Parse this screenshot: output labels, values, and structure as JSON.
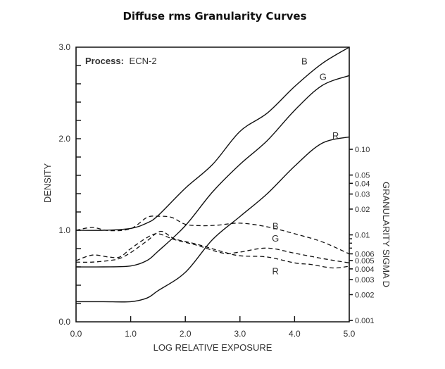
{
  "chart_data": {
    "type": "line",
    "title": "Diffuse rms Granularity Curves",
    "annotation": {
      "label": "Process:",
      "value": "ECN-2"
    },
    "xlabel": "LOG RELATIVE EXPOSURE",
    "ylabel": "DENSITY",
    "y2label": "GRANULARITY SIGMA D",
    "xlim": [
      0,
      5
    ],
    "ylim": [
      0,
      3
    ],
    "y2lim": [
      0.001,
      0.1
    ],
    "y2scale": "log",
    "grid": false,
    "x_ticks": [
      "0.0",
      "1.0",
      "2.0",
      "3.0",
      "4.0",
      "5.0"
    ],
    "y_ticks": [
      "0.0",
      "1.0",
      "2.0",
      "3.0"
    ],
    "y2_ticks": [
      "0.10",
      "0.05",
      "0.04",
      "0.03",
      "0.02",
      "0.01",
      "0.006",
      "0.005",
      "0.004",
      "0.003",
      "0.002",
      "0.001"
    ],
    "density_series": [
      {
        "name": "B",
        "x": [
          0,
          0.5,
          1.0,
          1.3,
          1.5,
          2.0,
          2.5,
          3.0,
          3.5,
          4.0,
          4.5,
          5.0
        ],
        "y": [
          1.0,
          1.0,
          1.02,
          1.08,
          1.16,
          1.46,
          1.72,
          2.08,
          2.28,
          2.57,
          2.82,
          3.0
        ],
        "label_at": [
          4.18,
          2.85
        ]
      },
      {
        "name": "G",
        "x": [
          0,
          0.5,
          1.0,
          1.3,
          1.5,
          2.0,
          2.5,
          3.0,
          3.5,
          4.0,
          4.5,
          5.0
        ],
        "y": [
          0.6,
          0.6,
          0.61,
          0.67,
          0.77,
          1.05,
          1.42,
          1.72,
          1.98,
          2.31,
          2.58,
          2.69
        ],
        "label_at": [
          4.52,
          2.68
        ]
      },
      {
        "name": "R",
        "x": [
          0,
          0.5,
          1.0,
          1.3,
          1.5,
          2.0,
          2.5,
          3.0,
          3.5,
          4.0,
          4.5,
          5.0
        ],
        "y": [
          0.22,
          0.22,
          0.22,
          0.26,
          0.34,
          0.54,
          0.9,
          1.15,
          1.4,
          1.7,
          1.95,
          2.02
        ],
        "label_at": [
          4.75,
          2.04
        ]
      }
    ],
    "granularity_series": [
      {
        "name": "B",
        "x": [
          0,
          0.3,
          0.6,
          1.0,
          1.3,
          1.5,
          1.75,
          2.0,
          2.3,
          2.6,
          3.0,
          3.5,
          4.0,
          4.5,
          5.0
        ],
        "y": [
          0.0113,
          0.0122,
          0.0112,
          0.0118,
          0.016,
          0.0165,
          0.016,
          0.0133,
          0.0128,
          0.013,
          0.0137,
          0.0124,
          0.0103,
          0.0083,
          0.006
        ],
        "label_at": [
          3.65,
          0.0128
        ]
      },
      {
        "name": "G",
        "x": [
          0,
          0.3,
          0.6,
          0.8,
          1.0,
          1.3,
          1.5,
          1.8,
          2.2,
          2.7,
          3.0,
          3.5,
          4.0,
          4.5,
          5.0
        ],
        "y": [
          0.005,
          0.0058,
          0.0055,
          0.0055,
          0.0069,
          0.0093,
          0.0103,
          0.0088,
          0.0076,
          0.0061,
          0.0063,
          0.007,
          0.0061,
          0.0053,
          0.0047
        ],
        "label_at": [
          3.65,
          0.0092
        ]
      },
      {
        "name": "R",
        "x": [
          0,
          0.3,
          0.6,
          0.8,
          1.0,
          1.3,
          1.55,
          1.8,
          2.2,
          2.7,
          3.0,
          3.5,
          4.0,
          4.3,
          4.7,
          5.0
        ],
        "y": [
          0.0048,
          0.0048,
          0.005,
          0.0053,
          0.0062,
          0.0085,
          0.011,
          0.009,
          0.0078,
          0.0063,
          0.0057,
          0.0055,
          0.0047,
          0.0045,
          0.0041,
          0.0043
        ],
        "label_at": [
          3.65,
          0.0038
        ]
      }
    ],
    "colors": {
      "line": "#111111",
      "text": "#333333"
    }
  }
}
